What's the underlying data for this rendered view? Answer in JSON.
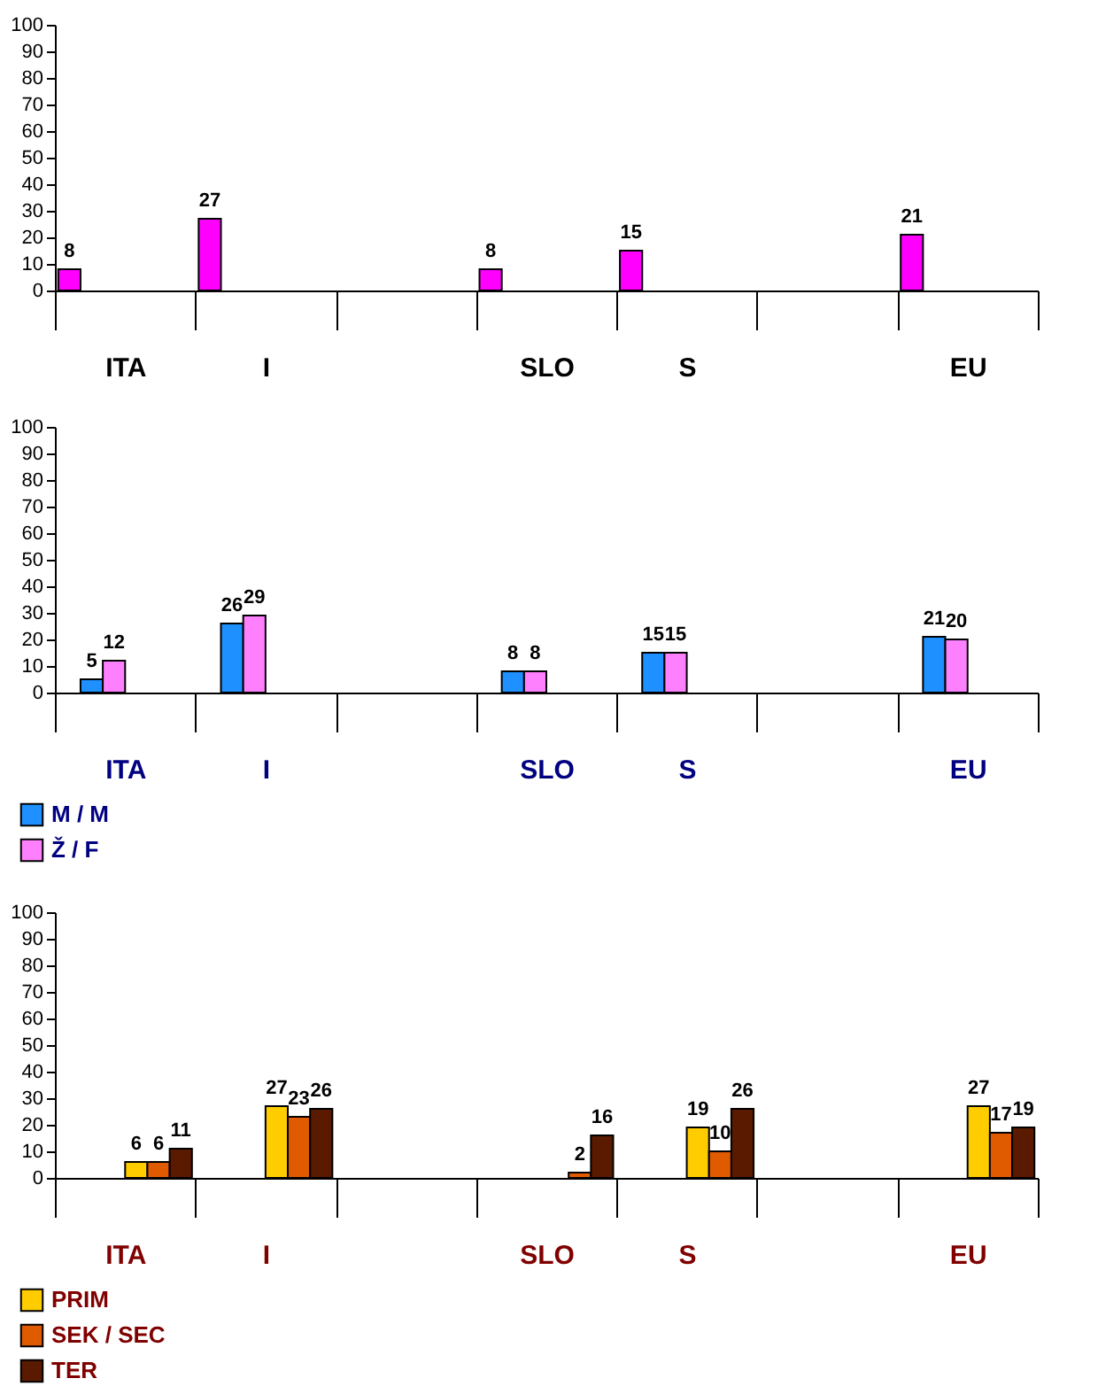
{
  "chart_data": [
    {
      "type": "bar",
      "categories": [
        "ITA",
        "I",
        null,
        "SLO",
        "S",
        null,
        "EU"
      ],
      "series": [
        {
          "color": "#ff00ff",
          "values": [
            8,
            27,
            null,
            8,
            15,
            null,
            21
          ]
        }
      ],
      "ylim": [
        0,
        100
      ],
      "yticks": [
        0,
        10,
        20,
        30,
        40,
        50,
        60,
        70,
        80,
        90,
        100
      ],
      "data_labels": true,
      "grid": false,
      "legend": false
    },
    {
      "type": "bar",
      "categories": [
        "ITA",
        "I",
        null,
        "SLO",
        "S",
        null,
        "EU"
      ],
      "series": [
        {
          "name": "M / M",
          "color": "#1e90ff",
          "values": [
            5,
            26,
            null,
            8,
            15,
            null,
            21
          ]
        },
        {
          "name": "Ž / F",
          "color": "#ff80ff",
          "values": [
            12,
            29,
            null,
            8,
            15,
            null,
            20
          ]
        }
      ],
      "ylim": [
        0,
        100
      ],
      "yticks": [
        0,
        10,
        20,
        30,
        40,
        50,
        60,
        70,
        80,
        90,
        100
      ],
      "data_labels": true,
      "grid": false,
      "legend": "bottom left"
    },
    {
      "type": "bar",
      "categories": [
        "ITA",
        "I",
        null,
        "SLO",
        "S",
        null,
        "EU"
      ],
      "series": [
        {
          "name": "PRIM",
          "color": "#ffcc00",
          "values": [
            6,
            27,
            null,
            null,
            19,
            null,
            27
          ]
        },
        {
          "name": "SEK / SEC",
          "color": "#e05a00",
          "values": [
            6,
            23,
            null,
            2,
            10,
            null,
            17
          ]
        },
        {
          "name": "TER",
          "color": "#5a1a00",
          "values": [
            11,
            26,
            null,
            16,
            26,
            null,
            19
          ]
        }
      ],
      "ylim": [
        0,
        100
      ],
      "yticks": [
        0,
        10,
        20,
        30,
        40,
        50,
        60,
        70,
        80,
        90,
        100
      ],
      "data_labels": true,
      "grid": false,
      "legend": "bottom left"
    }
  ]
}
